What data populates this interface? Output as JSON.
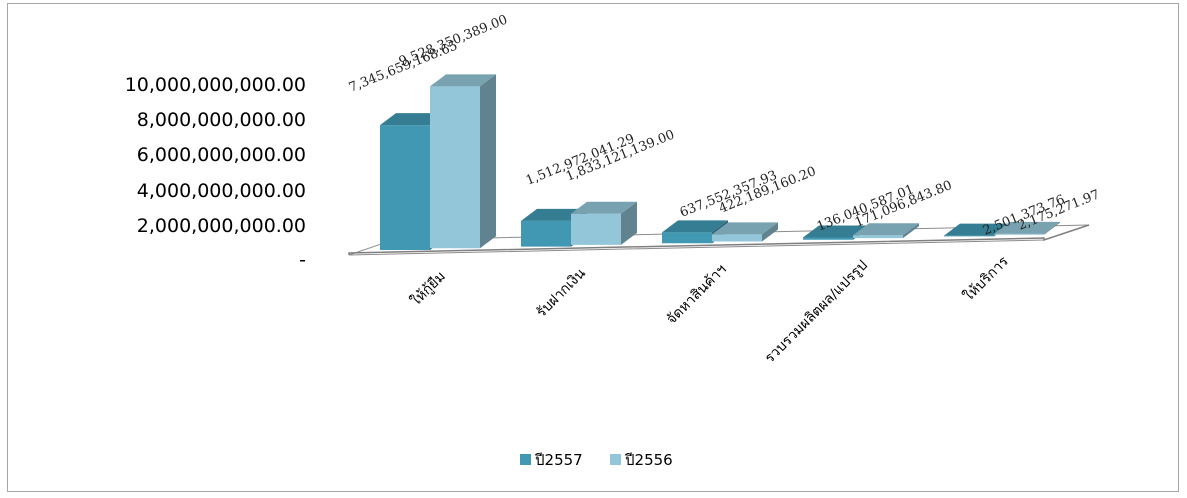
{
  "chart_data": {
    "type": "bar",
    "categories": [
      "ให้กู้ยืม",
      "รับฝากเงิน",
      "จัดหาสินค้าฯ",
      "รวบรวมผลิตผล/แปรรูป",
      "ให้บริการ"
    ],
    "series": [
      {
        "name": "ปี2557",
        "values": [
          7345659168.65,
          1512972041.29,
          637552357.93,
          136040587.01,
          2501373.76
        ],
        "labels": [
          "7,345,659,168.65",
          "1,512,972,041.29",
          "637,552,357.93",
          "136,040,587.01",
          "2,501,373.76"
        ],
        "color": "#4198b2"
      },
      {
        "name": "ปี2556",
        "values": [
          9528350389.0,
          1833121139.0,
          422189160.2,
          171096843.8,
          2175271.97
        ],
        "labels": [
          "9,528,350,389.00",
          "1,833,121,139.00",
          "422,189,160.20",
          "171,096,843.80",
          "2,175,271.97"
        ],
        "color": "#93c6d8"
      }
    ],
    "yticks": [
      "-",
      "2,000,000,000.00",
      "4,000,000,000.00",
      "6,000,000,000.00",
      "8,000,000,000.00",
      "10,000,000,000.00"
    ],
    "ylim": [
      0,
      10000000000
    ],
    "legend_position": "bottom",
    "grid": false,
    "style": "3d-clustered-column"
  }
}
